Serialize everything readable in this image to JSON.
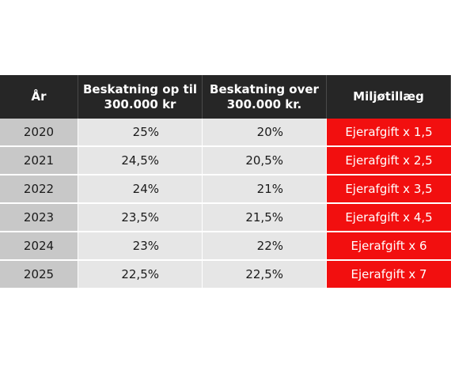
{
  "table": {
    "headers": [
      "År",
      "Beskatning op til 300.000 kr",
      "Beskatning over 300.000 kr.",
      "Miljøtillæg"
    ],
    "rows": [
      {
        "year": "2020",
        "up_to": "25%",
        "over": "20%",
        "miljo": "Ejerafgift x 1,5"
      },
      {
        "year": "2021",
        "up_to": "24,5%",
        "over": "20,5%",
        "miljo": "Ejerafgift x 2,5"
      },
      {
        "year": "2022",
        "up_to": "24%",
        "over": "21%",
        "miljo": "Ejerafgift x 3,5"
      },
      {
        "year": "2023",
        "up_to": "23,5%",
        "over": "21,5%",
        "miljo": "Ejerafgift x 4,5"
      },
      {
        "year": "2024",
        "up_to": "23%",
        "over": "22%",
        "miljo": "Ejerafgift x 6"
      },
      {
        "year": "2025",
        "up_to": "22,5%",
        "over": "22,5%",
        "miljo": "Ejerafgift x 7"
      }
    ]
  },
  "colors": {
    "header_bg": "#262626",
    "year_bg": "#c8c8c8",
    "value_bg": "#e6e6e6",
    "miljo_bg": "#f20f0f"
  }
}
